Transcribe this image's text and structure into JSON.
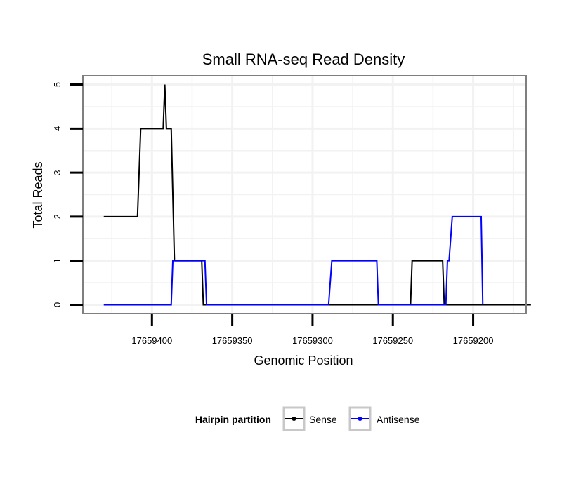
{
  "chart_data": {
    "type": "line",
    "title": "Small RNA-seq Read Density",
    "xlabel": "Genomic Position",
    "ylabel": "Total Reads",
    "x_reversed": true,
    "xlim": [
      17659443,
      17659167
    ],
    "ylim": [
      -0.2,
      5.2
    ],
    "x_ticks": [
      17659400,
      17659350,
      17659300,
      17659250,
      17659200
    ],
    "x_tick_labels": [
      "17659400",
      "17659350",
      "17659300",
      "17659250",
      "17659200"
    ],
    "y_ticks": [
      0,
      1,
      2,
      3,
      4,
      5
    ],
    "y_tick_labels": [
      "0",
      "1",
      "2",
      "3",
      "4",
      "5"
    ],
    "legend": {
      "title": "Hairpin partition",
      "position": "bottom",
      "entries": [
        "Sense",
        "Antisense"
      ]
    },
    "series": [
      {
        "name": "Sense",
        "color": "#000000",
        "points": [
          [
            17659430,
            2
          ],
          [
            17659409,
            2
          ],
          [
            17659407,
            4
          ],
          [
            17659393,
            4
          ],
          [
            17659392,
            5
          ],
          [
            17659391,
            4
          ],
          [
            17659388,
            4
          ],
          [
            17659386,
            1
          ],
          [
            17659369,
            1
          ],
          [
            17659368,
            0
          ],
          [
            17659239,
            0
          ],
          [
            17659238,
            1
          ],
          [
            17659219,
            1
          ],
          [
            17659218,
            0
          ],
          [
            17659164,
            0
          ]
        ]
      },
      {
        "name": "Antisense",
        "color": "#0000ff",
        "points": [
          [
            17659430,
            0
          ],
          [
            17659388,
            0
          ],
          [
            17659387,
            1
          ],
          [
            17659367,
            1
          ],
          [
            17659366,
            0
          ],
          [
            17659290,
            0
          ],
          [
            17659288,
            1
          ],
          [
            17659260,
            1
          ],
          [
            17659259,
            0
          ],
          [
            17659217,
            0
          ],
          [
            17659216,
            1
          ],
          [
            17659215,
            1
          ],
          [
            17659213,
            2
          ],
          [
            17659195,
            2
          ],
          [
            17659194,
            0
          ]
        ]
      }
    ]
  }
}
